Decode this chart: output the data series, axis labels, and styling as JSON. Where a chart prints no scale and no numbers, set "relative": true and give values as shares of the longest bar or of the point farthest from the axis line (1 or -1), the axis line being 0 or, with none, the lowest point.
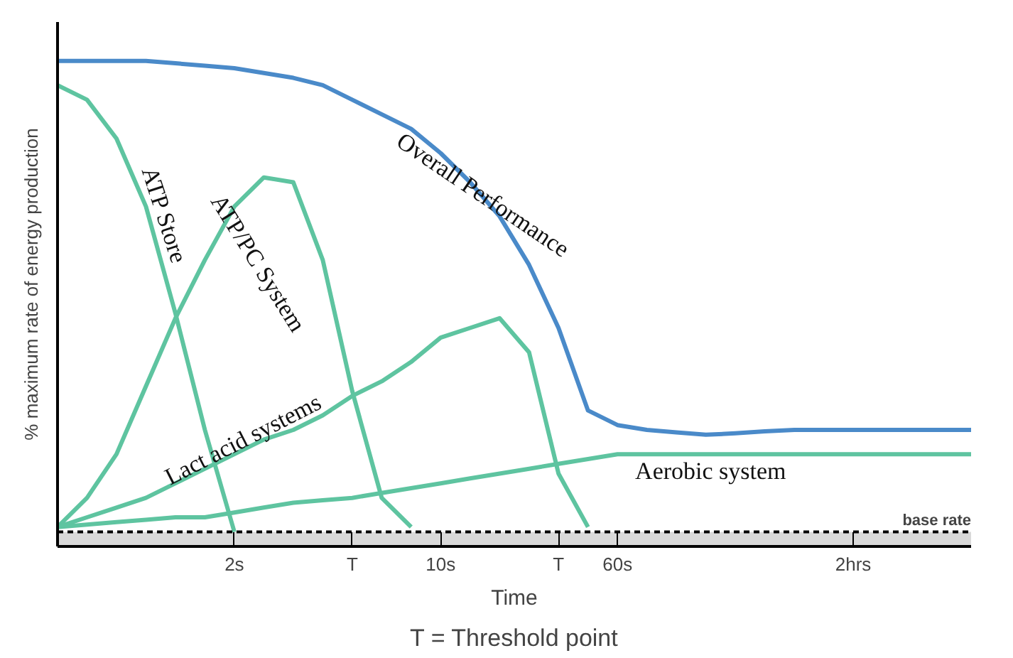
{
  "chart_data": {
    "type": "line",
    "relative": true,
    "xlabel": "Time",
    "ylabel": "% maximum rate of energy production",
    "categories": [
      null,
      null,
      null,
      null,
      null,
      null,
      "2s",
      null,
      null,
      null,
      "T",
      null,
      null,
      "10s",
      null,
      null,
      null,
      "T",
      null,
      "60s",
      null,
      null,
      null,
      null,
      null,
      null,
      null,
      "2hrs",
      null,
      null,
      null,
      null
    ],
    "grid": false,
    "marker": "none",
    "line_style": "solid",
    "series": [
      {
        "name": "Overall Performance",
        "color": "#4a8ac9",
        "values": [
          1,
          1,
          1,
          1,
          0.995,
          0.99,
          0.985,
          0.975,
          0.965,
          0.95,
          0.92,
          0.89,
          0.86,
          0.81,
          0.75,
          0.68,
          0.58,
          0.45,
          0.28,
          0.25,
          0.24,
          0.235,
          0.23,
          0.233,
          0.237,
          0.24,
          0.24,
          0.24,
          0.24,
          0.24,
          0.24,
          0.24
        ]
      },
      {
        "name": "ATP Store",
        "color": "#5ec4a0",
        "values": [
          0.95,
          0.92,
          0.84,
          0.7,
          0.48,
          0.24,
          0.03,
          null,
          null,
          null,
          null,
          null,
          null,
          null,
          null,
          null,
          null,
          null,
          null,
          null,
          null,
          null,
          null,
          null,
          null,
          null,
          null,
          null,
          null,
          null,
          null,
          null
        ]
      },
      {
        "name": "ATP/PC System",
        "color": "#5ec4a0",
        "values": [
          0.04,
          0.1,
          0.19,
          0.33,
          0.47,
          0.59,
          0.7,
          0.76,
          0.75,
          0.59,
          0.32,
          0.1,
          0.04,
          null,
          null,
          null,
          null,
          null,
          null,
          null,
          null,
          null,
          null,
          null,
          null,
          null,
          null,
          null,
          null,
          null,
          null,
          null
        ]
      },
      {
        "name": "Lact acid systems",
        "color": "#5ec4a0",
        "values": [
          0.04,
          0.06,
          0.08,
          0.1,
          0.13,
          0.16,
          0.19,
          0.22,
          0.24,
          0.27,
          0.31,
          0.34,
          0.38,
          0.43,
          0.45,
          0.47,
          0.4,
          0.15,
          0.04,
          null,
          null,
          null,
          null,
          null,
          null,
          null,
          null,
          null,
          null,
          null,
          null,
          null
        ]
      },
      {
        "name": "Aerobic system",
        "color": "#5ec4a0",
        "values": [
          0.04,
          0.045,
          0.05,
          0.055,
          0.06,
          0.06,
          0.07,
          0.08,
          0.09,
          0.095,
          0.1,
          0.11,
          0.12,
          0.13,
          0.14,
          0.15,
          0.16,
          0.17,
          0.18,
          0.19,
          0.19,
          0.19,
          0.19,
          0.19,
          0.19,
          0.19,
          0.19,
          0.19,
          0.19,
          0.19,
          0.19,
          0.19
        ]
      }
    ],
    "ref_lines": [
      {
        "axis": "y",
        "value": 0.03,
        "label": "base rate",
        "color": "#000000",
        "line_style": "dashed"
      }
    ],
    "bands": [
      {
        "axis": "y",
        "from": 0,
        "to": 0.03,
        "color": "#d9d9d9"
      }
    ],
    "annotations": [
      "T = Threshold point"
    ]
  }
}
